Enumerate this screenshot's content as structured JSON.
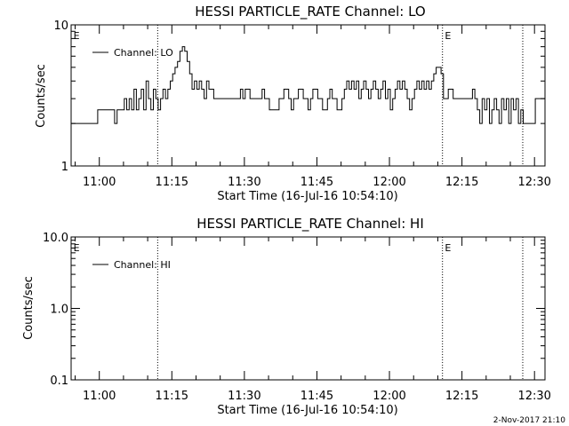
{
  "footer": {
    "timestamp": "2-Nov-2017 21:10"
  },
  "chart_data": [
    {
      "type": "line",
      "title": "HESSI PARTICLE_RATE Channel: LO",
      "xlabel": "Start Time (16-Jul-16 10:54:10)",
      "ylabel": "Counts/sec",
      "yscale": "log",
      "ylim": [
        1,
        10
      ],
      "xlim_minutes": [
        0,
        98
      ],
      "y_tick_labels": [
        "1",
        "10"
      ],
      "x_tick_labels": [
        "11:00",
        "11:15",
        "11:30",
        "11:45",
        "12:00",
        "12:15",
        "12:30"
      ],
      "x_tick_minutes": [
        5.83,
        20.83,
        35.83,
        50.83,
        65.83,
        80.83,
        95.83
      ],
      "event_markers_minutes": [
        17.9,
        76.8,
        93.4
      ],
      "event_labels": [
        {
          "text": "E",
          "minute": 0.3
        },
        {
          "text": "E",
          "minute": 77.1
        }
      ],
      "legend": {
        "position": "top-left"
      },
      "series": [
        {
          "name": "Channel: LO",
          "x": [
            0.0,
            5.0,
            5.5,
            8.5,
            9.0,
            9.5,
            10.5,
            11.0,
            11.5,
            12.0,
            12.5,
            13.0,
            13.5,
            14.0,
            14.5,
            15.0,
            15.5,
            16.0,
            16.5,
            17.0,
            17.5,
            18.0,
            18.5,
            19.0,
            19.5,
            20.0,
            20.5,
            21.0,
            21.5,
            22.0,
            22.5,
            23.0,
            23.5,
            24.0,
            24.5,
            25.0,
            25.5,
            26.0,
            26.5,
            27.0,
            27.5,
            28.0,
            28.5,
            29.0,
            29.5,
            30.0,
            31.0,
            34.0,
            35.0,
            35.5,
            36.0,
            37.0,
            38.0,
            39.0,
            39.5,
            40.0,
            41.0,
            42.0,
            43.0,
            44.0,
            45.0,
            45.5,
            46.0,
            47.0,
            48.0,
            49.0,
            49.5,
            50.0,
            51.0,
            52.0,
            53.0,
            53.5,
            54.0,
            55.0,
            56.0,
            56.5,
            57.0,
            57.5,
            58.0,
            58.5,
            59.0,
            59.5,
            60.0,
            60.5,
            61.0,
            61.5,
            62.0,
            62.5,
            63.0,
            63.5,
            64.0,
            64.5,
            65.0,
            65.5,
            66.0,
            66.5,
            67.0,
            67.5,
            68.0,
            68.5,
            69.0,
            69.5,
            70.0,
            70.5,
            71.0,
            71.5,
            72.0,
            72.5,
            73.0,
            73.5,
            74.0,
            74.5,
            75.0,
            75.5,
            76.0,
            76.5,
            77.0,
            78.0,
            79.0,
            79.5,
            80.0,
            81.0,
            82.0,
            83.0,
            83.5,
            84.0,
            84.5,
            85.0,
            85.5,
            86.0,
            86.5,
            87.0,
            87.5,
            88.0,
            88.5,
            89.0,
            89.5,
            90.0,
            90.5,
            91.0,
            91.5,
            92.0,
            92.5,
            93.0,
            93.5,
            94.0,
            95.0,
            96.0,
            97.0,
            98.0
          ],
          "y": [
            2,
            2,
            2.5,
            2.5,
            2,
            2.5,
            2.5,
            3,
            2.5,
            3,
            2.5,
            3.5,
            2.5,
            3,
            3.5,
            2.5,
            4,
            3,
            2.5,
            3.5,
            3,
            2.5,
            3,
            3.5,
            3,
            3.5,
            4,
            4.5,
            5,
            5.5,
            6.5,
            7,
            6.5,
            5.5,
            4.5,
            3.5,
            4,
            3.5,
            4,
            3.5,
            3,
            4,
            3.5,
            3.5,
            3,
            3,
            3,
            3,
            3.5,
            3,
            3.5,
            3,
            3,
            3,
            3.5,
            3,
            2.5,
            2.5,
            3,
            3.5,
            3,
            2.5,
            3,
            3.5,
            3,
            2.5,
            3,
            3.5,
            3,
            2.5,
            3,
            3.5,
            3,
            2.5,
            3,
            3.5,
            4,
            3.5,
            4,
            3.5,
            4,
            3,
            3.5,
            4,
            3.5,
            3,
            3.5,
            4,
            3.5,
            3,
            3.5,
            4,
            3,
            3.5,
            2.5,
            3,
            3.5,
            4,
            3.5,
            4,
            3.5,
            3,
            2.5,
            3,
            3.5,
            4,
            3.5,
            4,
            3.5,
            4,
            3.5,
            4,
            4.5,
            5,
            5,
            4.5,
            3,
            3.5,
            3,
            3,
            3,
            3,
            3,
            3.5,
            3,
            2.5,
            2,
            3,
            2.5,
            3,
            2,
            2.5,
            3,
            2.5,
            2,
            3,
            2.5,
            3,
            2,
            3,
            2.5,
            3,
            2,
            2.5,
            2,
            2,
            2,
            3,
            3,
            3
          ]
        }
      ]
    },
    {
      "type": "line",
      "title": "HESSI PARTICLE_RATE Channel: HI",
      "xlabel": "Start Time (16-Jul-16 10:54:10)",
      "ylabel": "Counts/sec",
      "yscale": "log",
      "ylim": [
        0.1,
        10.0
      ],
      "xlim_minutes": [
        0,
        98
      ],
      "y_tick_labels": [
        "0.1",
        "1.0",
        "10.0"
      ],
      "x_tick_labels": [
        "11:00",
        "11:15",
        "11:30",
        "11:45",
        "12:00",
        "12:15",
        "12:30"
      ],
      "x_tick_minutes": [
        5.83,
        20.83,
        35.83,
        50.83,
        65.83,
        80.83,
        95.83
      ],
      "event_markers_minutes": [
        17.9,
        76.8,
        93.4
      ],
      "event_labels": [
        {
          "text": "E",
          "minute": 0.3
        },
        {
          "text": "E",
          "minute": 77.1
        }
      ],
      "legend": {
        "position": "top-left"
      },
      "series": [
        {
          "name": "Channel: HI",
          "x": [],
          "y": []
        }
      ]
    }
  ]
}
